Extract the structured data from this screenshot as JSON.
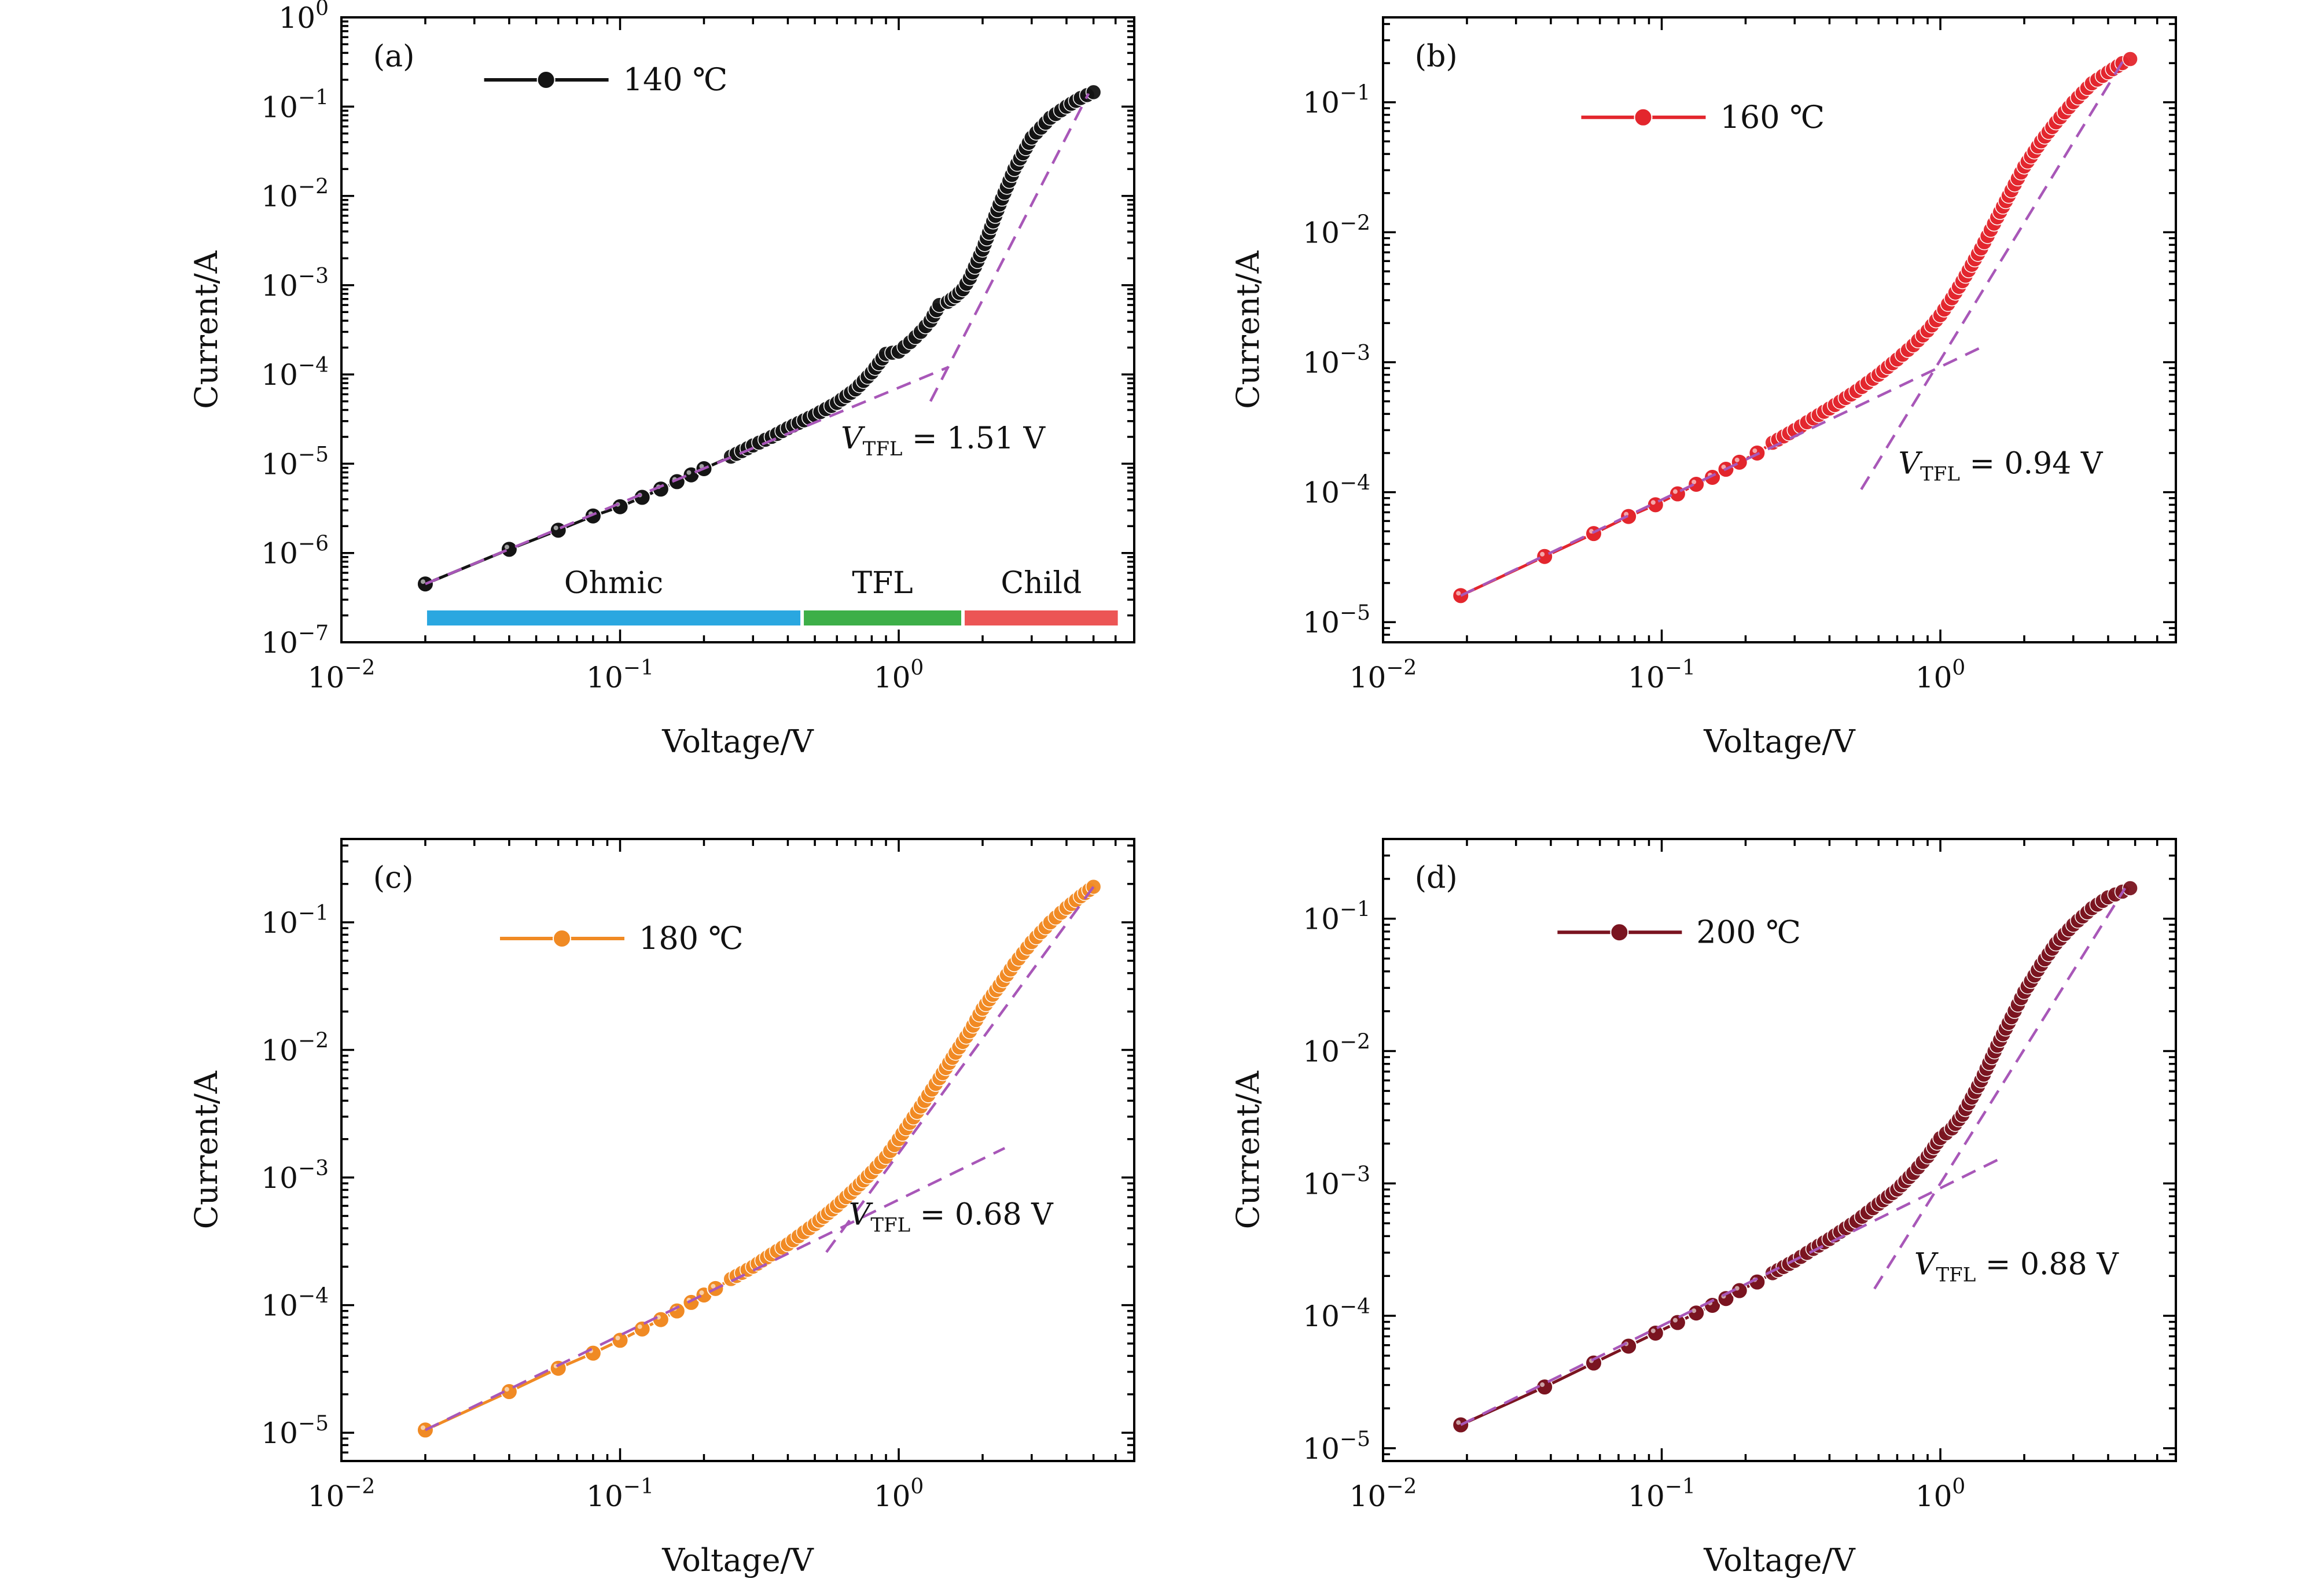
{
  "chart_data": [
    {
      "type": "scatter",
      "panel_label": "(a)",
      "legend": "140 ℃",
      "color": "#141414",
      "xlabel": "Voltage/V",
      "ylabel": "Current/A",
      "xscale": "log",
      "yscale": "log",
      "xlim": [
        0.01,
        7.0
      ],
      "ylim": [
        1e-07,
        1.0
      ],
      "x_ticks": [
        "10^-2",
        "10^-1",
        "10^0"
      ],
      "y_ticks": [
        "10^-7",
        "10^-6",
        "10^-5",
        "10^-4",
        "10^-3",
        "10^-2",
        "10^-1",
        "10^0"
      ],
      "vtfl_text": "= 1.51 V",
      "series": [
        {
          "name": "140 ℃",
          "x": [
            0.02,
            0.04,
            0.06,
            0.08,
            0.1,
            0.12,
            0.14,
            0.16,
            0.18,
            0.2,
            0.25,
            0.3,
            0.35,
            0.4,
            0.5,
            0.6,
            0.7,
            0.8,
            0.9,
            1.0,
            1.1,
            1.2,
            1.3,
            1.4,
            1.5,
            1.6,
            1.7,
            1.8,
            2.0,
            2.3,
            2.6,
            3.0,
            3.5,
            4.0,
            4.5,
            5.0
          ],
          "y": [
            4.5e-07,
            1.1e-06,
            1.8e-06,
            2.6e-06,
            3.3e-06,
            4.2e-06,
            5.2e-06,
            6.3e-06,
            7.5e-06,
            8.8e-06,
            1.2e-05,
            1.6e-05,
            2e-05,
            2.5e-05,
            3.5e-05,
            4.8e-05,
            6.8e-05,
            0.000105,
            0.00017,
            0.00018,
            0.00023,
            0.0003,
            0.0004,
            0.0006,
            0.00065,
            0.00075,
            0.0009,
            0.0012,
            0.0025,
            0.008,
            0.02,
            0.045,
            0.075,
            0.1,
            0.125,
            0.145
          ]
        }
      ],
      "regions": [
        {
          "label": "Ohmic",
          "x_start": 0.02,
          "x_end": 0.45,
          "color": "#2aa7e0"
        },
        {
          "label": "TFL",
          "x_start": 0.45,
          "x_end": 1.7,
          "color": "#3daf48"
        },
        {
          "label": "Child",
          "x_start": 1.7,
          "x_end": 6.2,
          "color": "#ec5555"
        }
      ],
      "fit_lines": [
        {
          "x": [
            0.02,
            1.5
          ],
          "y": [
            4.5e-07,
            0.00012
          ]
        },
        {
          "x": [
            1.3,
            4.8
          ],
          "y": [
            5e-05,
            0.14
          ]
        }
      ]
    },
    {
      "type": "scatter",
      "panel_label": "(b)",
      "legend": "160 ℃",
      "color": "#e3262d",
      "xlabel": "Voltage/V",
      "ylabel": "Current/A",
      "xscale": "log",
      "yscale": "log",
      "xlim": [
        0.01,
        7.0
      ],
      "ylim": [
        7e-06,
        0.45
      ],
      "x_ticks": [
        "10^-2",
        "10^-1",
        "10^0"
      ],
      "y_ticks": [
        "10^-5",
        "10^-4",
        "10^-3",
        "10^-2",
        "10^-1"
      ],
      "vtfl_text": "= 0.94 V",
      "series": [
        {
          "name": "160 ℃",
          "x": [
            0.019,
            0.038,
            0.057,
            0.076,
            0.095,
            0.114,
            0.133,
            0.152,
            0.17,
            0.19,
            0.22,
            0.25,
            0.3,
            0.35,
            0.4,
            0.5,
            0.6,
            0.7,
            0.8,
            0.9,
            1.0,
            1.1,
            1.2,
            1.4,
            1.6,
            1.8,
            2.0,
            2.3,
            2.6,
            3.0,
            3.5,
            4.0,
            4.5,
            4.8
          ],
          "y": [
            1.6e-05,
            3.2e-05,
            4.8e-05,
            6.5e-05,
            8e-05,
            9.7e-05,
            0.000115,
            0.00013,
            0.00015,
            0.00017,
            0.0002,
            0.00024,
            0.0003,
            0.00037,
            0.00044,
            0.0006,
            0.0008,
            0.00105,
            0.00135,
            0.00175,
            0.0023,
            0.0031,
            0.0042,
            0.0075,
            0.013,
            0.021,
            0.032,
            0.05,
            0.07,
            0.1,
            0.14,
            0.17,
            0.2,
            0.215
          ]
        }
      ],
      "fit_lines": [
        {
          "x": [
            0.019,
            1.4
          ],
          "y": [
            1.6e-05,
            0.0013
          ]
        },
        {
          "x": [
            0.52,
            4.6
          ],
          "y": [
            0.000105,
            0.22
          ]
        }
      ]
    },
    {
      "type": "scatter",
      "panel_label": "(c)",
      "legend": "180 ℃",
      "color": "#f08a24",
      "xlabel": "Voltage/V",
      "ylabel": "Current/A",
      "xscale": "log",
      "yscale": "log",
      "xlim": [
        0.01,
        7.0
      ],
      "ylim": [
        6e-06,
        0.45
      ],
      "x_ticks": [
        "10^-2",
        "10^-1",
        "10^0"
      ],
      "y_ticks": [
        "10^-5",
        "10^-4",
        "10^-3",
        "10^-2",
        "10^-1"
      ],
      "vtfl_text": "= 0.68 V",
      "series": [
        {
          "name": "180 ℃",
          "x": [
            0.02,
            0.04,
            0.06,
            0.08,
            0.1,
            0.12,
            0.14,
            0.16,
            0.18,
            0.2,
            0.22,
            0.25,
            0.3,
            0.35,
            0.4,
            0.5,
            0.6,
            0.7,
            0.8,
            0.9,
            1.0,
            1.2,
            1.4,
            1.6,
            1.8,
            2.0,
            2.3,
            2.6,
            3.0,
            3.5,
            4.0,
            4.5,
            5.0
          ],
          "y": [
            1.05e-05,
            2.1e-05,
            3.2e-05,
            4.2e-05,
            5.3e-05,
            6.5e-05,
            7.7e-05,
            9e-05,
            0.000105,
            0.00012,
            0.000135,
            0.00016,
            0.0002,
            0.00025,
            0.0003,
            0.00043,
            0.0006,
            0.00082,
            0.0011,
            0.00145,
            0.002,
            0.0036,
            0.006,
            0.0095,
            0.014,
            0.021,
            0.032,
            0.047,
            0.07,
            0.1,
            0.13,
            0.16,
            0.19
          ]
        }
      ],
      "fit_lines": [
        {
          "x": [
            0.02,
            2.4
          ],
          "y": [
            1.05e-05,
            0.0017
          ]
        },
        {
          "x": [
            0.55,
            5.0
          ],
          "y": [
            0.00026,
            0.19
          ]
        }
      ]
    },
    {
      "type": "scatter",
      "panel_label": "(d)",
      "legend": "200 ℃",
      "color": "#7a1420",
      "xlabel": "Voltage/V",
      "ylabel": "Current/A",
      "xscale": "log",
      "yscale": "log",
      "xlim": [
        0.01,
        7.0
      ],
      "ylim": [
        8e-06,
        0.4
      ],
      "x_ticks": [
        "10^-2",
        "10^-1",
        "10^0"
      ],
      "y_ticks": [
        "10^-5",
        "10^-4",
        "10^-3",
        "10^-2",
        "10^-1"
      ],
      "vtfl_text": "= 0.88 V",
      "series": [
        {
          "name": "200 ℃",
          "x": [
            0.019,
            0.038,
            0.057,
            0.076,
            0.095,
            0.114,
            0.133,
            0.152,
            0.17,
            0.19,
            0.22,
            0.25,
            0.3,
            0.35,
            0.4,
            0.5,
            0.6,
            0.7,
            0.8,
            0.9,
            1.0,
            1.1,
            1.2,
            1.4,
            1.6,
            1.8,
            2.0,
            2.3,
            2.6,
            3.0,
            3.5,
            4.0,
            4.5,
            4.8
          ],
          "y": [
            1.5e-05,
            2.9e-05,
            4.4e-05,
            5.9e-05,
            7.4e-05,
            8.9e-05,
            0.000105,
            0.00012,
            0.000135,
            0.000155,
            0.00018,
            0.00021,
            0.00026,
            0.00032,
            0.00038,
            0.00052,
            0.0007,
            0.0009,
            0.0012,
            0.0016,
            0.0022,
            0.0026,
            0.0033,
            0.006,
            0.011,
            0.018,
            0.028,
            0.045,
            0.065,
            0.09,
            0.12,
            0.145,
            0.16,
            0.17
          ]
        }
      ],
      "fit_lines": [
        {
          "x": [
            0.019,
            1.7
          ],
          "y": [
            1.5e-05,
            0.0016
          ]
        },
        {
          "x": [
            0.58,
            4.6
          ],
          "y": [
            0.00016,
            0.17
          ]
        }
      ]
    }
  ]
}
